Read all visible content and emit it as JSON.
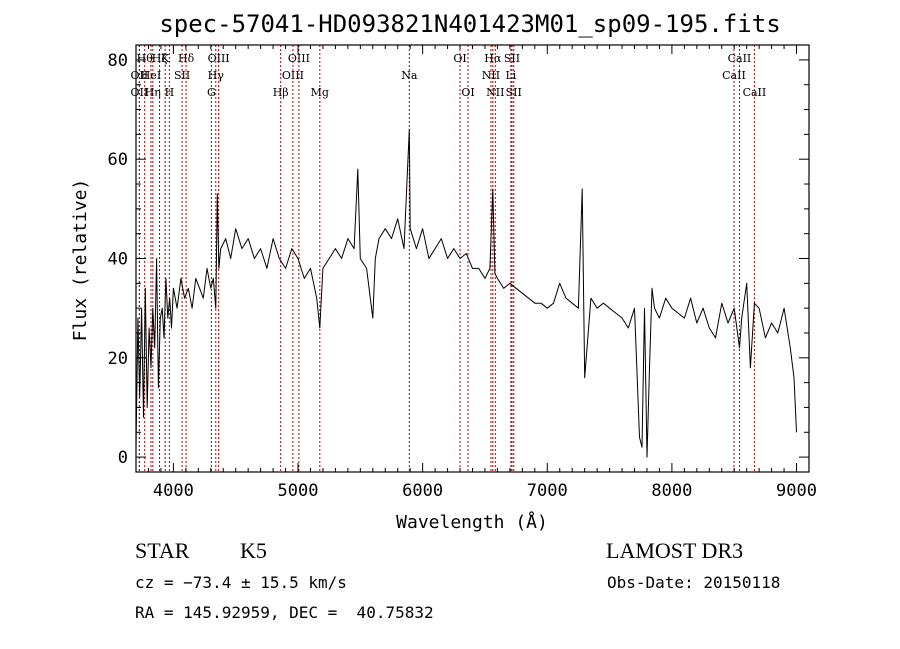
{
  "chart_data": {
    "type": "line",
    "title": "spec-57041-HD093821N401423M01_sp09-195.fits",
    "xlabel": "Wavelength (Å)",
    "ylabel": "Flux (relative)",
    "xlim": [
      3700,
      9100
    ],
    "ylim": [
      -3,
      83
    ],
    "x_ticks": [
      4000,
      5000,
      6000,
      7000,
      8000,
      9000
    ],
    "y_ticks": [
      0,
      20,
      40,
      60,
      80
    ],
    "grid": false,
    "series": [
      {
        "x": [
          3700,
          3715,
          3730,
          3745,
          3760,
          3775,
          3790,
          3805,
          3820,
          3835,
          3850,
          3865,
          3880,
          3895,
          3910,
          3925,
          3940,
          3955,
          3970,
          3985,
          4000,
          4030,
          4060,
          4090,
          4120,
          4150,
          4180,
          4210,
          4240,
          4270,
          4300,
          4320,
          4340,
          4352,
          4365,
          4380,
          4420,
          4460,
          4500,
          4550,
          4600,
          4650,
          4700,
          4750,
          4800,
          4850,
          4900,
          4950,
          5000,
          5050,
          5100,
          5150,
          5175,
          5200,
          5250,
          5300,
          5350,
          5400,
          5450,
          5480,
          5500,
          5550,
          5600,
          5620,
          5650,
          5700,
          5750,
          5800,
          5850,
          5893,
          5900,
          5950,
          6000,
          6050,
          6100,
          6150,
          6200,
          6250,
          6300,
          6350,
          6400,
          6450,
          6500,
          6540,
          6563,
          6580,
          6600,
          6650,
          6700,
          6750,
          6800,
          6850,
          6900,
          6950,
          7000,
          7050,
          7100,
          7150,
          7200,
          7250,
          7280,
          7300,
          7350,
          7400,
          7450,
          7500,
          7550,
          7600,
          7650,
          7700,
          7740,
          7760,
          7780,
          7800,
          7820,
          7840,
          7860,
          7900,
          7950,
          8000,
          8050,
          8100,
          8150,
          8200,
          8250,
          8300,
          8350,
          8400,
          8450,
          8500,
          8542,
          8560,
          8600,
          8630,
          8662,
          8700,
          8750,
          8800,
          8850,
          8900,
          8950,
          8980,
          9000
        ],
        "y": [
          2,
          28,
          12,
          30,
          8,
          34,
          10,
          26,
          18,
          30,
          22,
          40,
          14,
          28,
          30,
          24,
          36,
          28,
          32,
          26,
          34,
          30,
          36,
          32,
          34,
          30,
          36,
          34,
          32,
          38,
          34,
          36,
          30,
          53,
          38,
          42,
          44,
          40,
          46,
          42,
          44,
          40,
          42,
          38,
          44,
          40,
          38,
          42,
          40,
          36,
          38,
          32,
          26,
          38,
          40,
          42,
          40,
          44,
          42,
          58,
          40,
          38,
          28,
          40,
          44,
          46,
          44,
          48,
          42,
          66,
          46,
          42,
          46,
          40,
          42,
          44,
          40,
          42,
          40,
          41,
          38,
          38,
          36,
          38,
          54,
          37,
          36,
          34,
          35,
          34,
          33,
          32,
          31,
          31,
          30,
          31,
          35,
          32,
          31,
          30,
          54,
          16,
          32,
          30,
          31,
          30,
          29,
          28,
          26,
          30,
          4,
          2,
          30,
          0,
          18,
          34,
          30,
          28,
          32,
          30,
          29,
          28,
          32,
          27,
          30,
          26,
          24,
          31,
          27,
          30,
          22,
          28,
          35,
          18,
          31,
          30,
          24,
          27,
          25,
          30,
          22,
          16,
          5
        ]
      }
    ],
    "spectral_lines": [
      {
        "x": 3727,
        "label": "OII",
        "row": 2
      },
      {
        "x": 3727,
        "label": "OII",
        "row": 3
      },
      {
        "x": 3770,
        "label": "Hθ",
        "row": 1
      },
      {
        "x": 3820,
        "label": "HeI",
        "row": 2
      },
      {
        "x": 3835,
        "label": "Hη",
        "row": 3
      },
      {
        "x": 3889,
        "label": "Hζ",
        "row": 1
      },
      {
        "x": 3934,
        "label": "K",
        "row": 1
      },
      {
        "x": 3968,
        "label": "H",
        "row": 3
      },
      {
        "x": 4070,
        "label": "SII",
        "row": 2
      },
      {
        "x": 4102,
        "label": "Hδ",
        "row": 1
      },
      {
        "x": 4305,
        "label": "G",
        "row": 3
      },
      {
        "x": 4340,
        "label": "Hγ",
        "row": 2
      },
      {
        "x": 4363,
        "label": "OIII",
        "row": 1
      },
      {
        "x": 4861,
        "label": "Hβ",
        "row": 3
      },
      {
        "x": 4959,
        "label": "OIII",
        "row": 2
      },
      {
        "x": 5007,
        "label": "OIII",
        "row": 1
      },
      {
        "x": 5175,
        "label": "Mg",
        "row": 3
      },
      {
        "x": 5893,
        "label": "Na",
        "row": 2
      },
      {
        "x": 6300,
        "label": "OI",
        "row": 1
      },
      {
        "x": 6364,
        "label": "OI",
        "row": 3
      },
      {
        "x": 6548,
        "label": "NII",
        "row": 2
      },
      {
        "x": 6563,
        "label": "Hα",
        "row": 1
      },
      {
        "x": 6583,
        "label": "NII",
        "row": 3
      },
      {
        "x": 6708,
        "label": "Li",
        "row": 2
      },
      {
        "x": 6717,
        "label": "SII",
        "row": 1
      },
      {
        "x": 6731,
        "label": "SII",
        "row": 3
      },
      {
        "x": 8498,
        "label": "CaII",
        "row": 2
      },
      {
        "x": 8542,
        "label": "CaII",
        "row": 1
      },
      {
        "x": 8662,
        "label": "CaII",
        "row": 3
      }
    ]
  },
  "info": {
    "class": "STAR",
    "subclass": "K5",
    "survey": "LAMOST DR3",
    "redshift": "cz = −73.4 ± 15.5 km/s",
    "obs_date": "Obs-Date: 20150118",
    "coords": "RA = 145.92959, DEC =  40.75832"
  }
}
